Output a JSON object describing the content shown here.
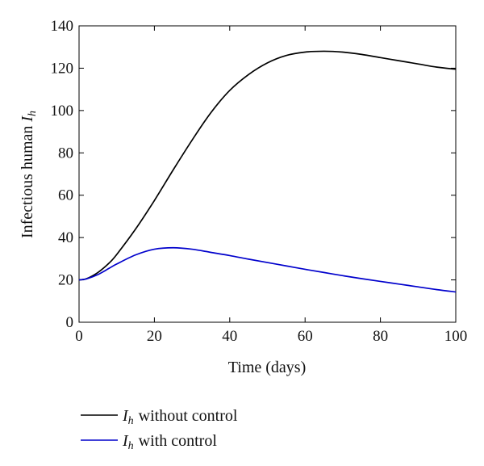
{
  "chart_data": {
    "type": "line",
    "title": "",
    "xlabel": "Time (days)",
    "ylabel": "Infectious human",
    "ylabel_symbol": "I",
    "ylabel_subscript": "h",
    "xlim": [
      0,
      100
    ],
    "ylim": [
      0,
      140
    ],
    "xticks": [
      0,
      20,
      40,
      60,
      80,
      100
    ],
    "yticks": [
      0,
      20,
      40,
      60,
      80,
      100,
      120,
      140
    ],
    "grid": false,
    "legend_position": "bottom-left-outside",
    "series": [
      {
        "name": "I_h without control",
        "legend_symbol": "I",
        "legend_subscript": "h",
        "legend_text": "without control",
        "color": "#000000",
        "x": [
          0,
          2,
          5,
          8,
          10,
          15,
          20,
          25,
          30,
          35,
          40,
          45,
          50,
          55,
          60,
          65,
          70,
          75,
          80,
          85,
          90,
          95,
          100
        ],
        "y": [
          20,
          20.6,
          23.5,
          28,
          32,
          44,
          57.5,
          72,
          86,
          99,
          109.5,
          117,
          122.5,
          126,
          127.6,
          128,
          127.6,
          126.5,
          125,
          123.5,
          122,
          120.5,
          119.5
        ]
      },
      {
        "name": "I_h with control",
        "legend_symbol": "I",
        "legend_subscript": "h",
        "legend_text": "with control",
        "color": "#0000cc",
        "x": [
          0,
          2,
          5,
          8,
          10,
          15,
          20,
          25,
          30,
          35,
          40,
          45,
          50,
          55,
          60,
          65,
          70,
          75,
          80,
          85,
          90,
          95,
          100
        ],
        "y": [
          20,
          20.5,
          22.5,
          25.5,
          27.5,
          31.8,
          34.5,
          35.2,
          34.5,
          33,
          31.5,
          29.8,
          28.2,
          26.6,
          25,
          23.5,
          22,
          20.6,
          19.3,
          18,
          16.7,
          15.4,
          14.3
        ]
      }
    ]
  }
}
